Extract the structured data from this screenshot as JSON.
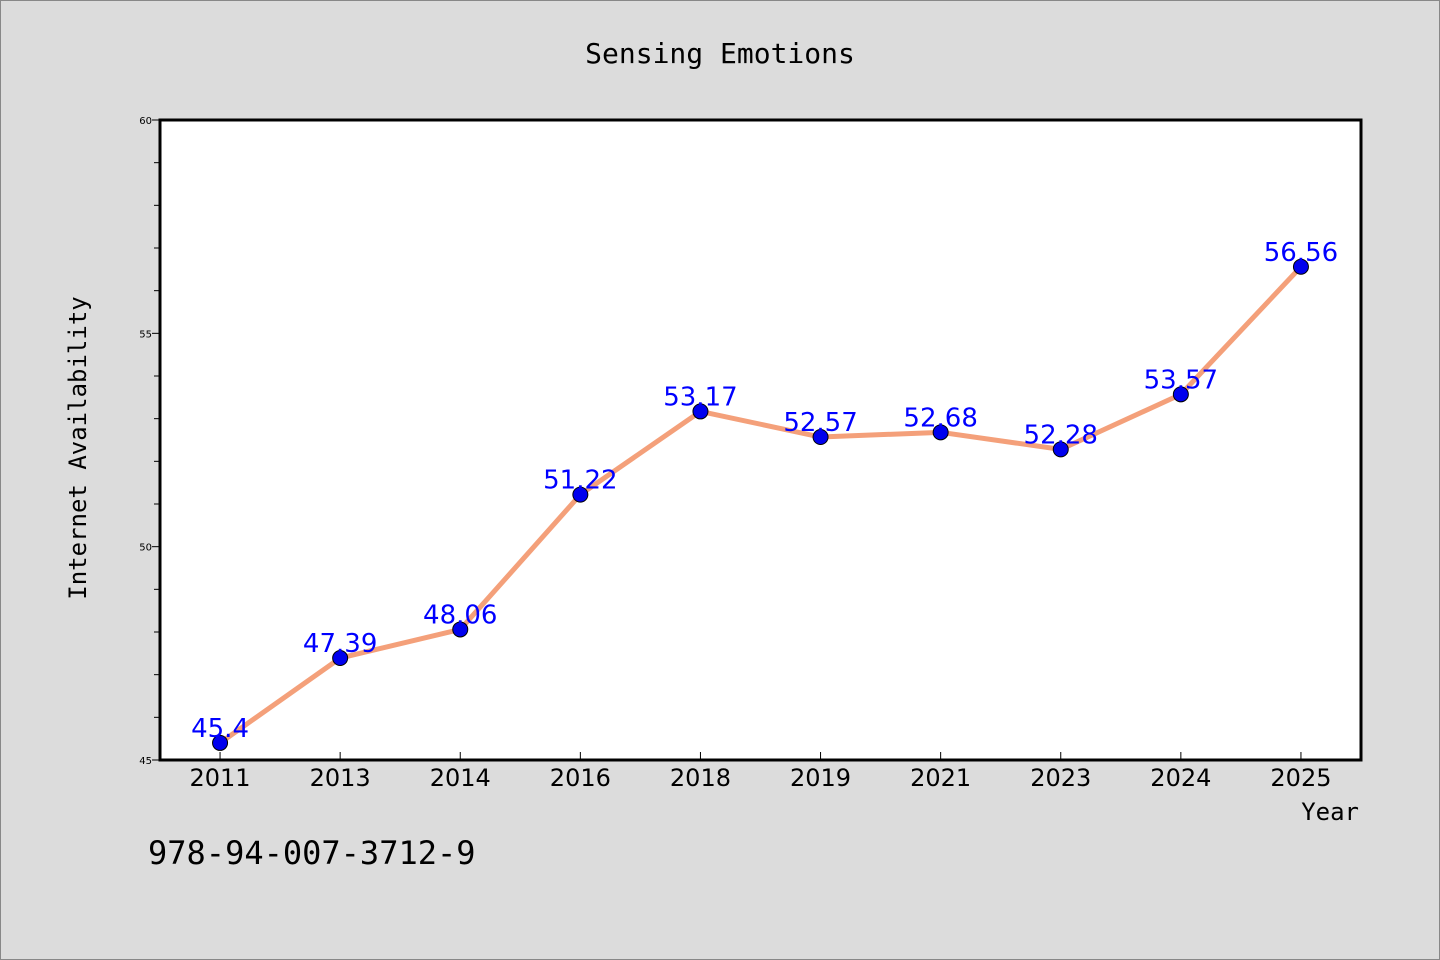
{
  "chart_data": {
    "type": "line",
    "title": "Sensing Emotions",
    "xlabel": "Year",
    "ylabel": "Internet Availability",
    "categories": [
      "2011",
      "2013",
      "2014",
      "2016",
      "2018",
      "2019",
      "2021",
      "2023",
      "2024",
      "2025"
    ],
    "values": [
      45.4,
      47.39,
      48.06,
      51.22,
      53.17,
      52.57,
      52.68,
      52.28,
      53.57,
      56.56
    ],
    "data_labels": [
      "45.4",
      "47.39",
      "48.06",
      "51.22",
      "53.17",
      "52.57",
      "52.68",
      "52.28",
      "53.57",
      "56.56"
    ],
    "ylim": [
      45,
      60
    ],
    "y_ticks": [
      "45",
      "50",
      "55",
      "60"
    ],
    "grid": false,
    "legend": "none",
    "line_color": "#f4a07a",
    "marker_color": "#0000ee",
    "label_color": "#0000ff"
  },
  "footer": {
    "isbn": "978-94-007-3712-9"
  }
}
